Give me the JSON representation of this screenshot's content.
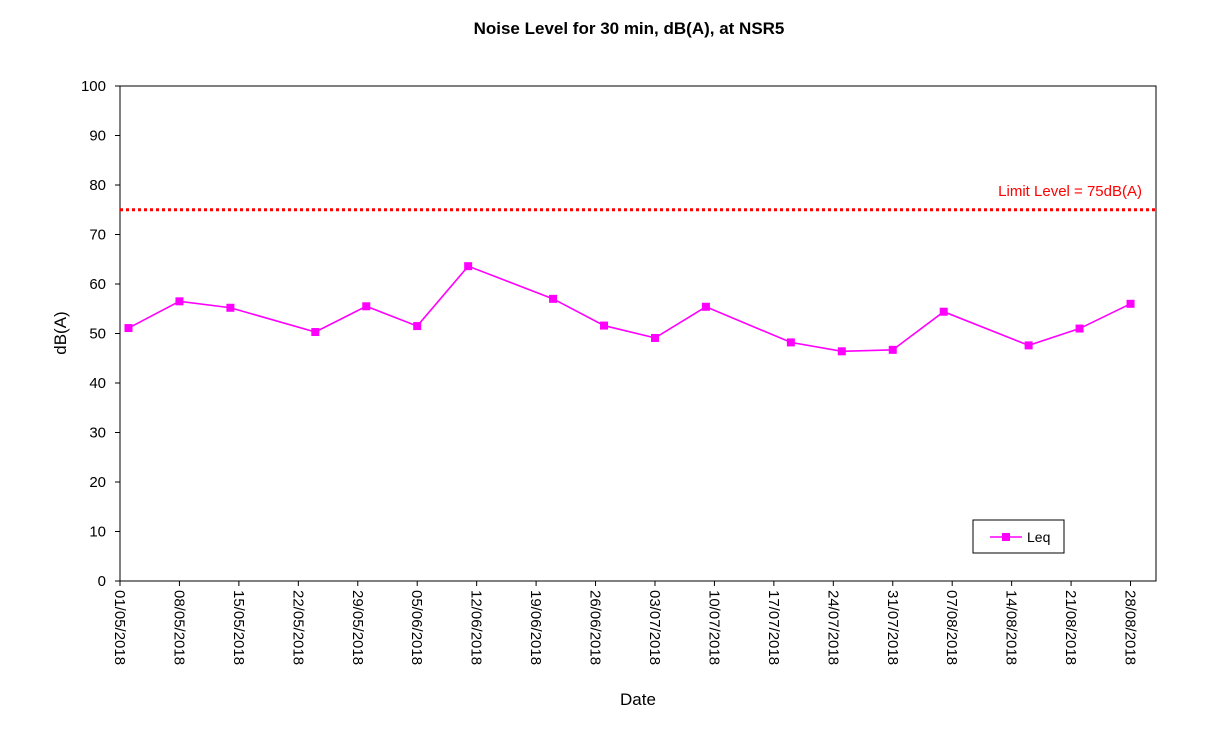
{
  "chart_data": {
    "type": "line",
    "title": "Noise Level for 30 min, dB(A), at NSR5",
    "xlabel": "Date",
    "ylabel": "dB(A)",
    "ylim": [
      0,
      100
    ],
    "y_ticks": [
      0,
      10,
      20,
      30,
      40,
      50,
      60,
      70,
      80,
      90,
      100
    ],
    "x_ticks": [
      "01/05/2018",
      "08/05/2018",
      "15/05/2018",
      "22/05/2018",
      "29/05/2018",
      "05/06/2018",
      "12/06/2018",
      "19/06/2018",
      "26/06/2018",
      "03/07/2018",
      "10/07/2018",
      "17/07/2018",
      "24/07/2018",
      "31/07/2018",
      "07/08/2018",
      "14/08/2018",
      "21/08/2018",
      "28/08/2018"
    ],
    "x_range": [
      "01/05/2018",
      "31/08/2018"
    ],
    "grid": false,
    "legend": {
      "position": "bottom-right",
      "entries": [
        "Leq"
      ]
    },
    "series": [
      {
        "name": "Leq",
        "color": "#ff00ff",
        "marker": "square",
        "points": [
          {
            "x": "02/05/2018",
            "y": 51.1
          },
          {
            "x": "08/05/2018",
            "y": 56.5
          },
          {
            "x": "14/05/2018",
            "y": 55.2
          },
          {
            "x": "24/05/2018",
            "y": 50.3
          },
          {
            "x": "30/05/2018",
            "y": 55.5
          },
          {
            "x": "05/06/2018",
            "y": 51.5
          },
          {
            "x": "11/06/2018",
            "y": 63.6
          },
          {
            "x": "21/06/2018",
            "y": 57.0
          },
          {
            "x": "27/06/2018",
            "y": 51.6
          },
          {
            "x": "03/07/2018",
            "y": 49.1
          },
          {
            "x": "09/07/2018",
            "y": 55.4
          },
          {
            "x": "19/07/2018",
            "y": 48.2
          },
          {
            "x": "25/07/2018",
            "y": 46.4
          },
          {
            "x": "31/07/2018",
            "y": 46.7
          },
          {
            "x": "06/08/2018",
            "y": 54.4
          },
          {
            "x": "16/08/2018",
            "y": 47.6
          },
          {
            "x": "22/08/2018",
            "y": 51.0
          },
          {
            "x": "28/08/2018",
            "y": 56.0
          }
        ]
      }
    ],
    "reference_lines": [
      {
        "label": "Limit Level = 75dB(A)",
        "y": 75,
        "color": "#ff0000",
        "style": "dotted"
      }
    ]
  }
}
